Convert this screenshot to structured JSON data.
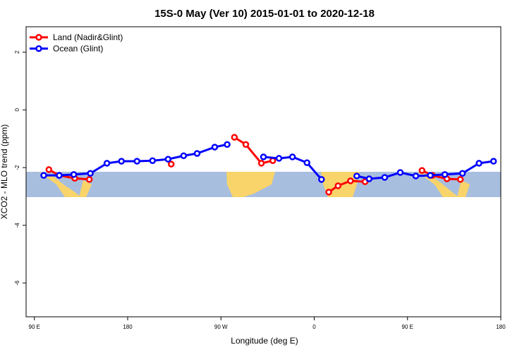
{
  "chart_data": {
    "type": "line",
    "title": "15S-0 May (Ver 10)   2015-01-01 to 2020-12-18",
    "x_label": "Longitude (deg E)",
    "y_label": "XCO2 - MLO trend (ppm)",
    "xlim": [
      82,
      540
    ],
    "ylim": [
      -7.17,
      2.88
    ],
    "xticks": [
      {
        "value": 90,
        "label": "90 E"
      },
      {
        "value": 180,
        "label": "180"
      },
      {
        "value": 270,
        "label": "90 W"
      },
      {
        "value": 360,
        "label": "0"
      },
      {
        "value": 450,
        "label": "90 E"
      },
      {
        "value": 540,
        "label": "180"
      }
    ],
    "yticks": [
      2,
      0,
      -2,
      -4,
      -6
    ],
    "legend": "top-left",
    "series": [
      {
        "name": "Land (Nadir&Glint)",
        "color": "#ff0000",
        "x": [
          104,
          114,
          129,
          143,
          null,
          222,
          null,
          283,
          294,
          309,
          320,
          null,
          374,
          383,
          395,
          409,
          null,
          464,
          474,
          488,
          501
        ],
        "values": [
          -2.07,
          -2.27,
          -2.37,
          -2.41,
          null,
          -1.88,
          null,
          -0.95,
          -1.2,
          -1.85,
          -1.76,
          null,
          -2.85,
          -2.63,
          -2.46,
          -2.49,
          null,
          -2.1,
          -2.27,
          -2.39,
          -2.41
        ]
      },
      {
        "name": "Ocean (Glint)",
        "color": "#0000ff",
        "x": [
          99,
          114,
          128,
          144,
          160,
          174,
          189,
          204,
          219,
          234,
          247,
          264,
          276,
          null,
          311,
          326,
          339,
          353,
          367,
          null,
          401,
          413,
          428,
          443,
          458,
          472,
          486,
          503,
          519,
          533
        ],
        "values": [
          -2.27,
          -2.27,
          -2.24,
          -2.2,
          -1.85,
          -1.78,
          -1.78,
          -1.76,
          -1.71,
          -1.59,
          -1.51,
          -1.29,
          -1.2,
          null,
          -1.63,
          -1.68,
          -1.63,
          -1.83,
          -2.41,
          null,
          -2.29,
          -2.39,
          -2.34,
          -2.17,
          -2.29,
          -2.27,
          -2.24,
          -2.2,
          -1.85,
          -1.78
        ]
      }
    ]
  }
}
